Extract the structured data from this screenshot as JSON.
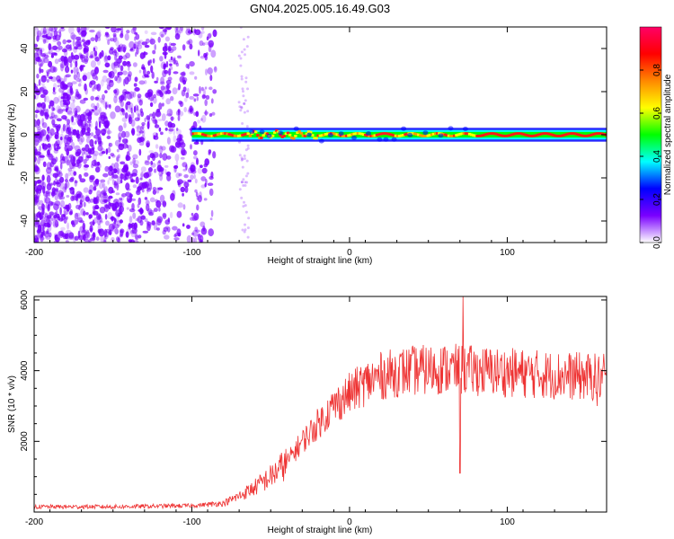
{
  "figure": {
    "title": "GN04.2025.005.16.49.G03"
  },
  "chart_data": [
    {
      "type": "heatmap",
      "xlabel": "Height of straight line (km)",
      "ylabel": "Frequency (Hz)",
      "xlim": [
        -200,
        163
      ],
      "ylim": [
        -50,
        50
      ],
      "x_ticks": [
        "-200",
        "-100",
        "0",
        "100"
      ],
      "y_ticks": [
        "-40",
        "-20",
        "0",
        "20",
        "40"
      ],
      "colorbar": {
        "label": "Normalized spectral amplitude",
        "range": [
          0,
          1
        ],
        "ticks": [
          "0.0",
          "0.2",
          "0.4",
          "0.6",
          "0.8"
        ],
        "stops": [
          "#ffffff",
          "#7a00ff",
          "#0000ff",
          "#00ffff",
          "#00ff00",
          "#ffff00",
          "#ff8800",
          "#ff0000",
          "#ff0066"
        ]
      },
      "signal": {
        "description_range_km": [
          -100,
          163
        ],
        "frequency_hz": 0,
        "peak_color": "#ff2020"
      },
      "noise_region_km": [
        -200,
        -85
      ],
      "noise_color": "#7a00ff"
    },
    {
      "type": "line",
      "xlabel": "Height of straight line (km)",
      "ylabel": "SNR (10 * v/v)",
      "xlim": [
        -200,
        163
      ],
      "ylim": [
        0,
        6100
      ],
      "x_ticks": [
        "-200",
        "-100",
        "0",
        "100"
      ],
      "y_ticks": [
        "2000",
        "4000",
        "6000"
      ],
      "series": [
        {
          "color": "#ee3333",
          "trend": [
            [
              -200,
              150
            ],
            [
              -150,
              150
            ],
            [
              -100,
              180
            ],
            [
              -80,
              250
            ],
            [
              -70,
              450
            ],
            [
              -60,
              700
            ],
            [
              -50,
              1000
            ],
            [
              -40,
              1400
            ],
            [
              -30,
              2000
            ],
            [
              -20,
              2500
            ],
            [
              -10,
              3000
            ],
            [
              0,
              3350
            ],
            [
              10,
              3650
            ],
            [
              20,
              3850
            ],
            [
              30,
              3950
            ],
            [
              40,
              4000
            ],
            [
              60,
              4050
            ],
            [
              80,
              4000
            ],
            [
              100,
              3950
            ],
            [
              120,
              3900
            ],
            [
              140,
              3850
            ],
            [
              163,
              3800
            ]
          ],
          "notable_values": [
            {
              "x": 72,
              "y": 6100
            },
            {
              "x": 70,
              "y": 1100
            },
            {
              "x": 157,
              "y": 3000
            }
          ]
        }
      ]
    }
  ]
}
